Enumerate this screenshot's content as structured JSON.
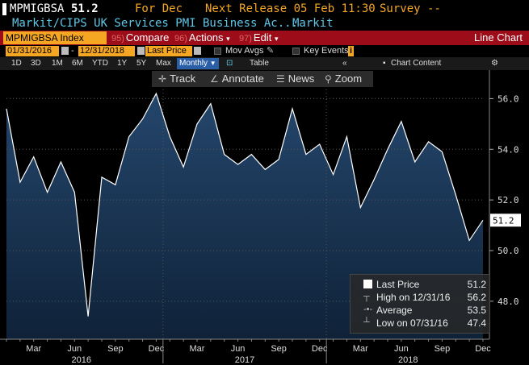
{
  "header": {
    "ticker": "MPMIGBSA",
    "value": "51.2",
    "for_label": "For Dec",
    "next_release": "Next Release 05 Feb 11:30",
    "survey": "Survey --",
    "description": "Markit/CIPS UK Services PMI Business Ac...",
    "source": "Markit"
  },
  "toolbar": {
    "index_label": "MPMIGBSA Index",
    "compare": {
      "num": "95)",
      "label": "Compare"
    },
    "actions": {
      "num": "96)",
      "label": "Actions"
    },
    "edit": {
      "num": "97)",
      "label": "Edit"
    },
    "chart_type": "Line Chart"
  },
  "range": {
    "start_date": "01/31/2016",
    "end_date": "12/31/2018",
    "field": "Last Price",
    "mov_avgs": "Mov Avgs",
    "key_events": "Key Events"
  },
  "periods": [
    "1D",
    "3D",
    "1M",
    "6M",
    "YTD",
    "1Y",
    "5Y",
    "Max"
  ],
  "frequency": "Monthly",
  "table_label": "Table",
  "chart_content_label": "Chart Content",
  "tools": [
    "Track",
    "Annotate",
    "News",
    "Zoom"
  ],
  "legend": {
    "last_label": "Last Price",
    "last_value": "51.2",
    "high_label": "High on 12/31/16",
    "high_value": "56.2",
    "avg_label": "Average",
    "avg_value": "53.5",
    "low_label": "Low on 07/31/16",
    "low_value": "47.4"
  },
  "colors": {
    "accent_orange": "#f5a623",
    "bar_red": "#9c0d19",
    "line": "#ffffff",
    "area_fill": "#1d3a5c"
  },
  "chart_data": {
    "type": "area",
    "x": [
      "2016-01",
      "2016-02",
      "2016-03",
      "2016-04",
      "2016-05",
      "2016-06",
      "2016-07",
      "2016-08",
      "2016-09",
      "2016-10",
      "2016-11",
      "2016-12",
      "2017-01",
      "2017-02",
      "2017-03",
      "2017-04",
      "2017-05",
      "2017-06",
      "2017-07",
      "2017-08",
      "2017-09",
      "2017-10",
      "2017-11",
      "2017-12",
      "2018-01",
      "2018-02",
      "2018-03",
      "2018-04",
      "2018-05",
      "2018-06",
      "2018-07",
      "2018-08",
      "2018-09",
      "2018-10",
      "2018-11",
      "2018-12"
    ],
    "series": [
      {
        "values": [
          55.6,
          52.7,
          53.7,
          52.3,
          53.5,
          52.3,
          47.4,
          52.9,
          52.6,
          54.5,
          55.2,
          56.2,
          54.5,
          53.3,
          55.0,
          55.8,
          53.8,
          53.4,
          53.8,
          53.2,
          53.6,
          55.6,
          53.8,
          54.2,
          53.0,
          54.5,
          51.7,
          52.8,
          54.0,
          55.1,
          53.5,
          54.3,
          53.9,
          52.2,
          50.4,
          51.2
        ]
      }
    ],
    "ylim": [
      46.5,
      57.0
    ],
    "yticks": [
      48.0,
      50.0,
      52.0,
      54.0,
      56.0
    ],
    "xtick_labels": [
      "Mar",
      "Jun",
      "Sep",
      "Dec",
      "Mar",
      "Jun",
      "Sep",
      "Dec",
      "Mar",
      "Jun",
      "Sep",
      "Dec"
    ],
    "year_labels": [
      "2016",
      "2017",
      "2018"
    ],
    "last_value_label": "51.2"
  }
}
